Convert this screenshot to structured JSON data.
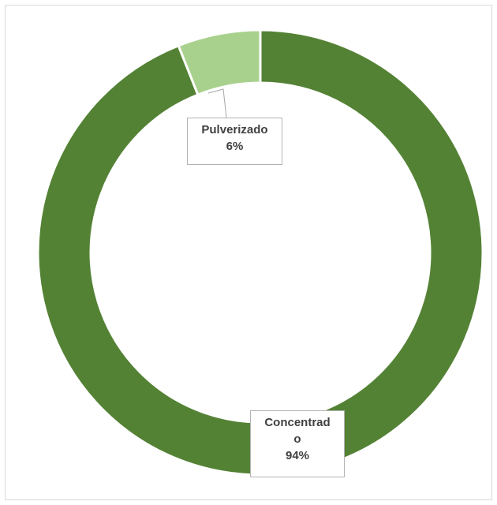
{
  "chart_data": {
    "type": "pie",
    "categories": [
      "Concentrado",
      "Pulverizado"
    ],
    "values": [
      94,
      6
    ],
    "labels": [
      {
        "name_lines": [
          "Concentrad",
          "o"
        ],
        "percent": "94%"
      },
      {
        "name_lines": [
          "Pulverizado"
        ],
        "percent": "6%"
      }
    ],
    "colors": [
      "#548235",
      "#a9d18e"
    ],
    "title": "",
    "legend": "none",
    "donut": true
  }
}
